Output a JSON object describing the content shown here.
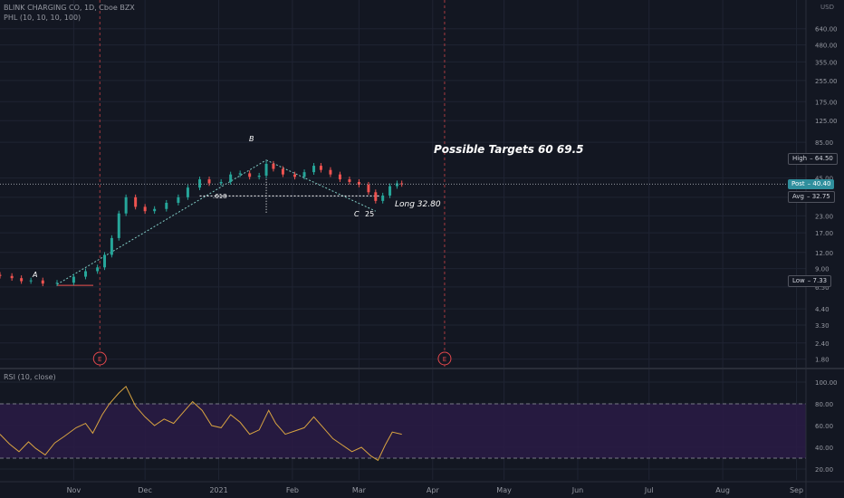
{
  "header": {
    "symbol_line": "BLINK CHARGING CO, 1D, Cboe BZX",
    "indicator_line": "PHL (10, 10, 10, 100)"
  },
  "colors": {
    "background": "#131722",
    "grid": "#1f2433",
    "candle_up": "#26a69a",
    "candle_down": "#ef5350",
    "rsi_line": "#d9a441",
    "rsi_band": "#2a1b45",
    "pivot_lines": "#80cbc4",
    "earnings_marker": "#e5484d",
    "post_tag": "#2f8f9d"
  },
  "chart_data": [
    {
      "type": "candlestick",
      "y_scale": "log",
      "ylim": [
        1.6,
        1000
      ],
      "price_axis_unit": "USD",
      "price_ticks": [
        "640.00",
        "480.00",
        "355.00",
        "255.00",
        "175.00",
        "125.00",
        "85.00",
        "45.00",
        "32.00",
        "23.00",
        "17.00",
        "12.00",
        "9.00",
        "6.50",
        "4.40",
        "3.30",
        "2.40",
        "1.80"
      ],
      "price_tick_values": [
        640,
        480,
        355,
        255,
        175,
        125,
        85,
        45,
        32,
        23,
        17,
        12,
        9,
        6.5,
        4.4,
        3.3,
        2.4,
        1.8
      ],
      "x_start": "2020-10-01",
      "x_end": "2021-09-05",
      "time_ticks": [
        {
          "label": "Nov",
          "date": "2020-11-01"
        },
        {
          "label": "Dec",
          "date": "2020-12-01"
        },
        {
          "label": "2021",
          "date": "2021-01-01"
        },
        {
          "label": "Feb",
          "date": "2021-02-01"
        },
        {
          "label": "Mar",
          "date": "2021-03-01"
        },
        {
          "label": "Apr",
          "date": "2021-04-01"
        },
        {
          "label": "May",
          "date": "2021-05-01"
        },
        {
          "label": "Jun",
          "date": "2021-06-01"
        },
        {
          "label": "Jul",
          "date": "2021-07-01"
        },
        {
          "label": "Aug",
          "date": "2021-08-01"
        },
        {
          "label": "Sep",
          "date": "2021-09-01"
        }
      ],
      "closes": [
        {
          "date": "2020-10-01",
          "close": 7.9
        },
        {
          "date": "2020-10-06",
          "close": 7.6
        },
        {
          "date": "2020-10-10",
          "close": 7.2
        },
        {
          "date": "2020-10-14",
          "close": 7.3
        },
        {
          "date": "2020-10-19",
          "close": 6.9
        },
        {
          "date": "2020-10-25",
          "close": 7.0
        },
        {
          "date": "2020-11-01",
          "close": 7.8
        },
        {
          "date": "2020-11-06",
          "close": 8.6
        },
        {
          "date": "2020-11-11",
          "close": 9.2
        },
        {
          "date": "2020-11-14",
          "close": 11.5
        },
        {
          "date": "2020-11-17",
          "close": 15.5
        },
        {
          "date": "2020-11-20",
          "close": 24.0
        },
        {
          "date": "2020-11-23",
          "close": 32.0
        },
        {
          "date": "2020-11-27",
          "close": 27.0
        },
        {
          "date": "2020-12-01",
          "close": 25.0
        },
        {
          "date": "2020-12-05",
          "close": 26.0
        },
        {
          "date": "2020-12-10",
          "close": 29.0
        },
        {
          "date": "2020-12-15",
          "close": 32.0
        },
        {
          "date": "2020-12-19",
          "close": 38.0
        },
        {
          "date": "2020-12-24",
          "close": 44.0
        },
        {
          "date": "2020-12-28",
          "close": 41.0
        },
        {
          "date": "2021-01-02",
          "close": 42.0
        },
        {
          "date": "2021-01-06",
          "close": 48.0
        },
        {
          "date": "2021-01-10",
          "close": 49.0
        },
        {
          "date": "2021-01-14",
          "close": 46.0
        },
        {
          "date": "2021-01-18",
          "close": 47.0
        },
        {
          "date": "2021-01-21",
          "close": 58.0
        },
        {
          "date": "2021-01-24",
          "close": 53.0
        },
        {
          "date": "2021-01-28",
          "close": 48.0
        },
        {
          "date": "2021-02-02",
          "close": 46.0
        },
        {
          "date": "2021-02-06",
          "close": 50.0
        },
        {
          "date": "2021-02-10",
          "close": 56.0
        },
        {
          "date": "2021-02-13",
          "close": 52.0
        },
        {
          "date": "2021-02-17",
          "close": 48.0
        },
        {
          "date": "2021-02-21",
          "close": 44.0
        },
        {
          "date": "2021-02-25",
          "close": 42.0
        },
        {
          "date": "2021-03-01",
          "close": 40.0
        },
        {
          "date": "2021-03-05",
          "close": 35.0
        },
        {
          "date": "2021-03-08",
          "close": 30.0
        },
        {
          "date": "2021-03-11",
          "close": 33.0
        },
        {
          "date": "2021-03-14",
          "close": 39.0
        },
        {
          "date": "2021-03-17",
          "close": 41.0
        },
        {
          "date": "2021-03-19",
          "close": 40.4
        }
      ],
      "price_tags": [
        {
          "label": "High",
          "value": "64.50",
          "price": 64.5,
          "style": "outline"
        },
        {
          "label": "Post",
          "value": "40.40",
          "price": 40.4,
          "style": "filled"
        },
        {
          "label": "Avg",
          "value": "32.75",
          "price": 32.75,
          "style": "outline"
        },
        {
          "label": "Low",
          "value": "7.33",
          "price": 7.33,
          "style": "outline"
        }
      ],
      "earnings_markers": [
        {
          "label": "E",
          "date": "2020-11-12"
        },
        {
          "label": "E",
          "date": "2021-04-06"
        }
      ],
      "annotations": {
        "targets": "Possible Targets  60   69.5",
        "long": "Long 32.80",
        "point_a": "A",
        "point_b": "B",
        "point_c": "C",
        "c_value": "25",
        "fib": ".618"
      },
      "pivot_points": [
        {
          "label": "A",
          "date": "2020-10-25",
          "price": 6.8
        },
        {
          "label": "B",
          "date": "2021-01-21",
          "price": 62.0
        },
        {
          "label": "C",
          "date": "2021-03-08",
          "price": 25.0
        }
      ]
    },
    {
      "type": "line",
      "title": "RSI (10, close)",
      "ylim": [
        10,
        110
      ],
      "band": [
        30,
        80
      ],
      "ticks": [
        "100.00",
        "80.00",
        "60.00",
        "40.00",
        "20.00"
      ],
      "tick_values": [
        100,
        80,
        60,
        40,
        20
      ],
      "points": [
        {
          "date": "2020-10-01",
          "value": 52
        },
        {
          "date": "2020-10-05",
          "value": 43
        },
        {
          "date": "2020-10-09",
          "value": 36
        },
        {
          "date": "2020-10-13",
          "value": 45
        },
        {
          "date": "2020-10-16",
          "value": 39
        },
        {
          "date": "2020-10-20",
          "value": 33
        },
        {
          "date": "2020-10-24",
          "value": 44
        },
        {
          "date": "2020-10-28",
          "value": 50
        },
        {
          "date": "2020-11-02",
          "value": 58
        },
        {
          "date": "2020-11-06",
          "value": 62
        },
        {
          "date": "2020-11-09",
          "value": 53
        },
        {
          "date": "2020-11-13",
          "value": 70
        },
        {
          "date": "2020-11-16",
          "value": 80
        },
        {
          "date": "2020-11-20",
          "value": 90
        },
        {
          "date": "2020-11-23",
          "value": 96
        },
        {
          "date": "2020-11-27",
          "value": 78
        },
        {
          "date": "2020-12-01",
          "value": 68
        },
        {
          "date": "2020-12-05",
          "value": 60
        },
        {
          "date": "2020-12-09",
          "value": 66
        },
        {
          "date": "2020-12-13",
          "value": 62
        },
        {
          "date": "2020-12-17",
          "value": 72
        },
        {
          "date": "2020-12-21",
          "value": 82
        },
        {
          "date": "2020-12-25",
          "value": 74
        },
        {
          "date": "2020-12-29",
          "value": 60
        },
        {
          "date": "2021-01-02",
          "value": 58
        },
        {
          "date": "2021-01-06",
          "value": 70
        },
        {
          "date": "2021-01-10",
          "value": 63
        },
        {
          "date": "2021-01-14",
          "value": 52
        },
        {
          "date": "2021-01-18",
          "value": 56
        },
        {
          "date": "2021-01-22",
          "value": 74
        },
        {
          "date": "2021-01-25",
          "value": 62
        },
        {
          "date": "2021-01-29",
          "value": 52
        },
        {
          "date": "2021-02-02",
          "value": 55
        },
        {
          "date": "2021-02-06",
          "value": 58
        },
        {
          "date": "2021-02-10",
          "value": 68
        },
        {
          "date": "2021-02-14",
          "value": 58
        },
        {
          "date": "2021-02-18",
          "value": 48
        },
        {
          "date": "2021-02-22",
          "value": 42
        },
        {
          "date": "2021-02-26",
          "value": 36
        },
        {
          "date": "2021-03-02",
          "value": 40
        },
        {
          "date": "2021-03-06",
          "value": 32
        },
        {
          "date": "2021-03-09",
          "value": 28
        },
        {
          "date": "2021-03-12",
          "value": 42
        },
        {
          "date": "2021-03-15",
          "value": 54
        },
        {
          "date": "2021-03-19",
          "value": 52
        }
      ]
    }
  ]
}
